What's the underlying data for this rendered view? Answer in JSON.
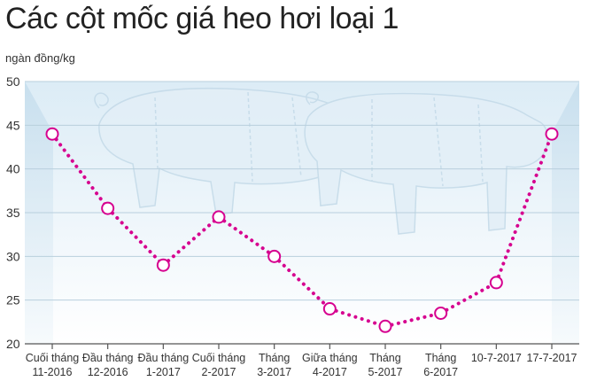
{
  "chart_data": {
    "type": "line",
    "title": "Các cột mốc giá heo hơi loại 1",
    "ylabel": "ngàn đồng/kg",
    "xlabel": "",
    "ylim": [
      20,
      50
    ],
    "yticks": [
      20,
      25,
      30,
      35,
      40,
      45,
      50
    ],
    "grid": true,
    "categories": [
      [
        "Cuối tháng",
        "11-2016"
      ],
      [
        "Đầu tháng",
        "12-2016"
      ],
      [
        "Đầu tháng",
        "1-2017"
      ],
      [
        "Cuối tháng",
        "2-2017"
      ],
      [
        "Tháng",
        "3-2017"
      ],
      [
        "Giữa tháng",
        "4-2017"
      ],
      [
        "Tháng",
        "5-2017"
      ],
      [
        "Tháng",
        "6-2017"
      ],
      [
        "10-7-2017"
      ],
      [
        "17-7-2017"
      ]
    ],
    "values": [
      44,
      35.5,
      29,
      34.5,
      30,
      24,
      22,
      23.5,
      27,
      44
    ],
    "line_color": "#d6008f",
    "marker_fill": "#ffffff",
    "background_color": "#e8f3fa"
  }
}
